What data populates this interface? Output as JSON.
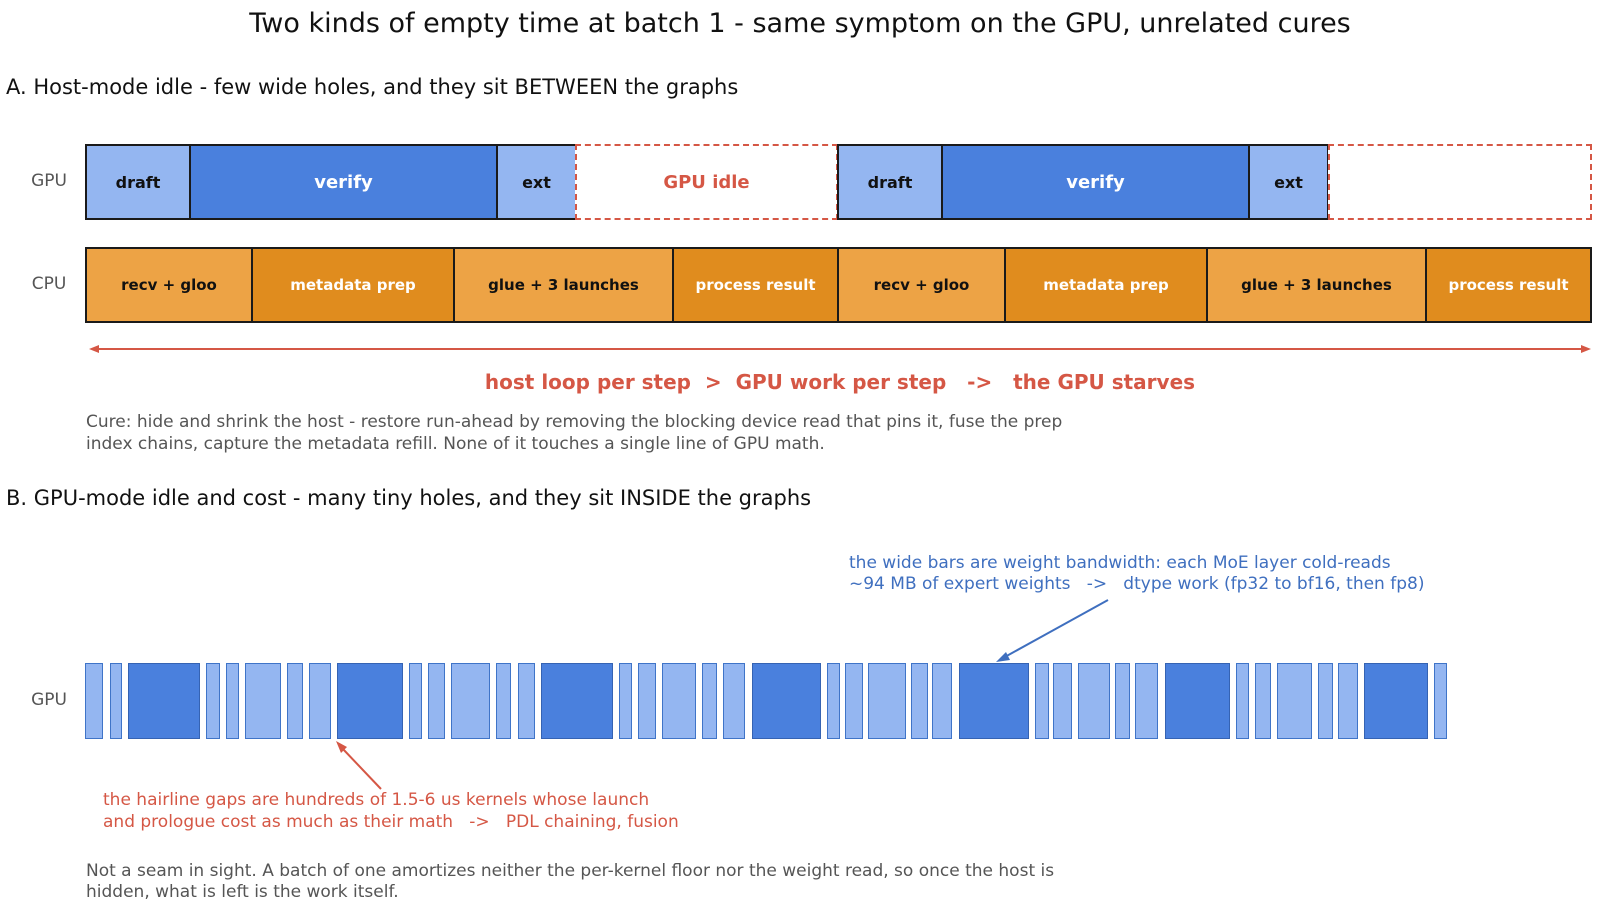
{
  "title": "Two kinds of empty time at batch 1 - same symptom on the GPU, unrelated cures",
  "section_a": {
    "heading": "A. Host-mode idle - few wide holes, and they sit BETWEEN the graphs",
    "gpu_label": "GPU",
    "cpu_label": "CPU",
    "gpu_blocks": [
      {
        "label": "draft",
        "kind": "draft"
      },
      {
        "label": "verify",
        "kind": "verify"
      },
      {
        "label": "ext",
        "kind": "ext"
      },
      {
        "label": "GPU idle",
        "kind": "idle"
      },
      {
        "label": "draft",
        "kind": "draft"
      },
      {
        "label": "verify",
        "kind": "verify"
      },
      {
        "label": "ext",
        "kind": "ext"
      },
      {
        "label": "",
        "kind": "idle"
      }
    ],
    "cpu_blocks": [
      {
        "label": "recv + gloo",
        "kind": "light"
      },
      {
        "label": "metadata prep",
        "kind": "dark"
      },
      {
        "label": "glue + 3 launches",
        "kind": "light"
      },
      {
        "label": "process result",
        "kind": "dark"
      },
      {
        "label": "recv + gloo",
        "kind": "light"
      },
      {
        "label": "metadata prep",
        "kind": "dark"
      },
      {
        "label": "glue + 3 launches",
        "kind": "light"
      },
      {
        "label": "process result",
        "kind": "dark"
      }
    ],
    "span_text": "host loop per step  >  GPU work per step   ->   the GPU starves",
    "cure_line1": "Cure: hide and shrink the host - restore run-ahead by removing the blocking device read that pins it, fuse the prep",
    "cure_line2": "index chains, capture the metadata refill. None of it touches a single line of GPU math."
  },
  "section_b": {
    "heading": "B. GPU-mode idle and cost - many tiny holes, and they sit INSIDE the graphs",
    "gpu_label": "GPU",
    "blue_note_line1": "the wide bars are weight bandwidth: each MoE layer cold-reads",
    "blue_note_line2": "~94 MB of expert weights   ->   dtype work (fp32 to bf16, then fp8)",
    "red_note_line1": "the hairline gaps are hundreds of 1.5-6 us kernels whose launch",
    "red_note_line2": "and prologue cost as much as their math   ->   PDL chaining, fusion",
    "footer_line1": "Not a seam in sight. A batch of one amortizes neither the per-kernel floor nor the weight read, so once the host is",
    "footer_line2": "hidden, what is left is the work itself."
  },
  "colors": {
    "draft_ext": "#94b6f1",
    "verify": "#4a80dd",
    "idle_accent": "#d55745",
    "cpu_light": "#eda345",
    "cpu_dark": "#e08c1e",
    "blue_note": "#3f6fbf"
  }
}
